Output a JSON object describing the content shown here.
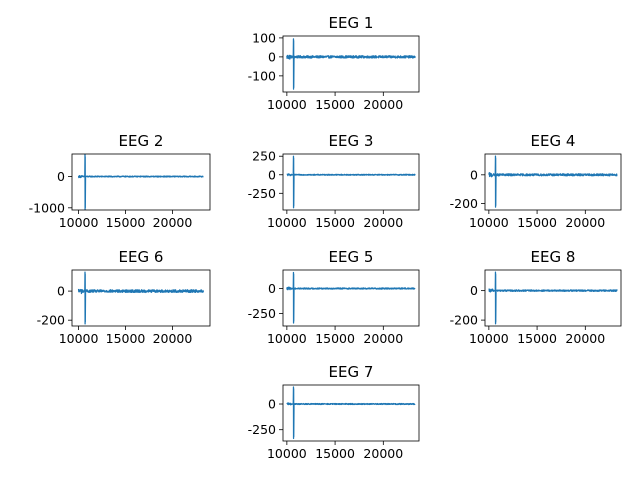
{
  "chart_data": {
    "type": "line",
    "color": "#1f77b4",
    "x_range": [
      10000,
      23300
    ],
    "spike_x": 10700,
    "panels": [
      {
        "title": "EEG 1",
        "xlim": [
          9600,
          23700
        ],
        "ylim": [
          -185,
          110
        ],
        "xticks": [
          10000,
          15000,
          20000
        ],
        "yticks": [
          100,
          0,
          -100
        ],
        "baseline_amplitude": 6,
        "spike_min": -170,
        "spike_max": 95
      },
      {
        "title": "EEG 2",
        "xlim": [
          9300,
          24000
        ],
        "ylim": [
          -1070,
          720
        ],
        "xticks": [
          10000,
          15000,
          20000
        ],
        "yticks": [
          0,
          -1000
        ],
        "baseline_amplitude": 15,
        "spike_min": -1050,
        "spike_max": 700
      },
      {
        "title": "EEG 3",
        "xlim": [
          9600,
          23700
        ],
        "ylim": [
          -475,
          280
        ],
        "xticks": [
          10000,
          15000,
          20000
        ],
        "yticks": [
          250,
          0,
          -250
        ],
        "baseline_amplitude": 6,
        "spike_min": -445,
        "spike_max": 250
      },
      {
        "title": "EEG 4",
        "xlim": [
          9600,
          23700
        ],
        "ylim": [
          -245,
          145
        ],
        "xticks": [
          10000,
          15000,
          20000
        ],
        "yticks": [
          0,
          -200
        ],
        "baseline_amplitude": 7,
        "spike_min": -225,
        "spike_max": 130
      },
      {
        "title": "EEG 6",
        "xlim": [
          9300,
          24000
        ],
        "ylim": [
          -240,
          145
        ],
        "xticks": [
          10000,
          15000,
          20000
        ],
        "yticks": [
          0,
          -200
        ],
        "baseline_amplitude": 9,
        "spike_min": -225,
        "spike_max": 130
      },
      {
        "title": "EEG 5",
        "xlim": [
          9600,
          23700
        ],
        "ylim": [
          -375,
          185
        ],
        "xticks": [
          10000,
          15000,
          20000
        ],
        "yticks": [
          0,
          -250
        ],
        "baseline_amplitude": 6,
        "spike_min": -345,
        "spike_max": 160
      },
      {
        "title": "EEG 8",
        "xlim": [
          9600,
          23700
        ],
        "ylim": [
          -240,
          140
        ],
        "xticks": [
          10000,
          15000,
          20000
        ],
        "yticks": [
          0,
          -200
        ],
        "baseline_amplitude": 5,
        "spike_min": -225,
        "spike_max": 125
      },
      {
        "title": "EEG 7",
        "xlim": [
          9600,
          23700
        ],
        "ylim": [
          -360,
          185
        ],
        "xticks": [
          10000,
          15000,
          20000
        ],
        "yticks": [
          0,
          -250
        ],
        "baseline_amplitude": 5,
        "spike_min": -335,
        "spike_max": 165
      }
    ]
  }
}
